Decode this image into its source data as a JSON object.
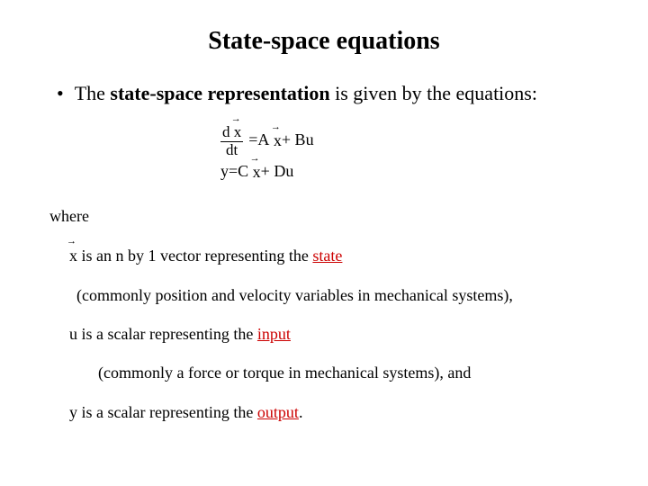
{
  "title": "State-space equations",
  "bullet": {
    "pre": "The ",
    "bold": "state-space representation",
    "post": " is given by the equations:"
  },
  "eq": {
    "d": "d",
    "x": "x",
    "dt": "dt",
    "eq": " = ",
    "A": "A",
    "plus": " + Bu",
    "y": "y",
    "C": "C",
    "Du": " + Du"
  },
  "where": {
    "label": "where",
    "l1_pre": " is an n by 1 vector representing the ",
    "l1_link": "state",
    "l2": "(commonly position and velocity variables in mechanical systems),",
    "l3_pre": "u is a scalar representing the ",
    "l3_link": "input",
    "l4": "(commonly a force or torque in mechanical systems), and",
    "l5_pre": "y is a scalar representing the ",
    "l5_link": "output",
    "l5_post": "."
  },
  "colors": {
    "title": "#000000",
    "link": "#cc0000",
    "text": "#000000",
    "background": "#ffffff"
  }
}
